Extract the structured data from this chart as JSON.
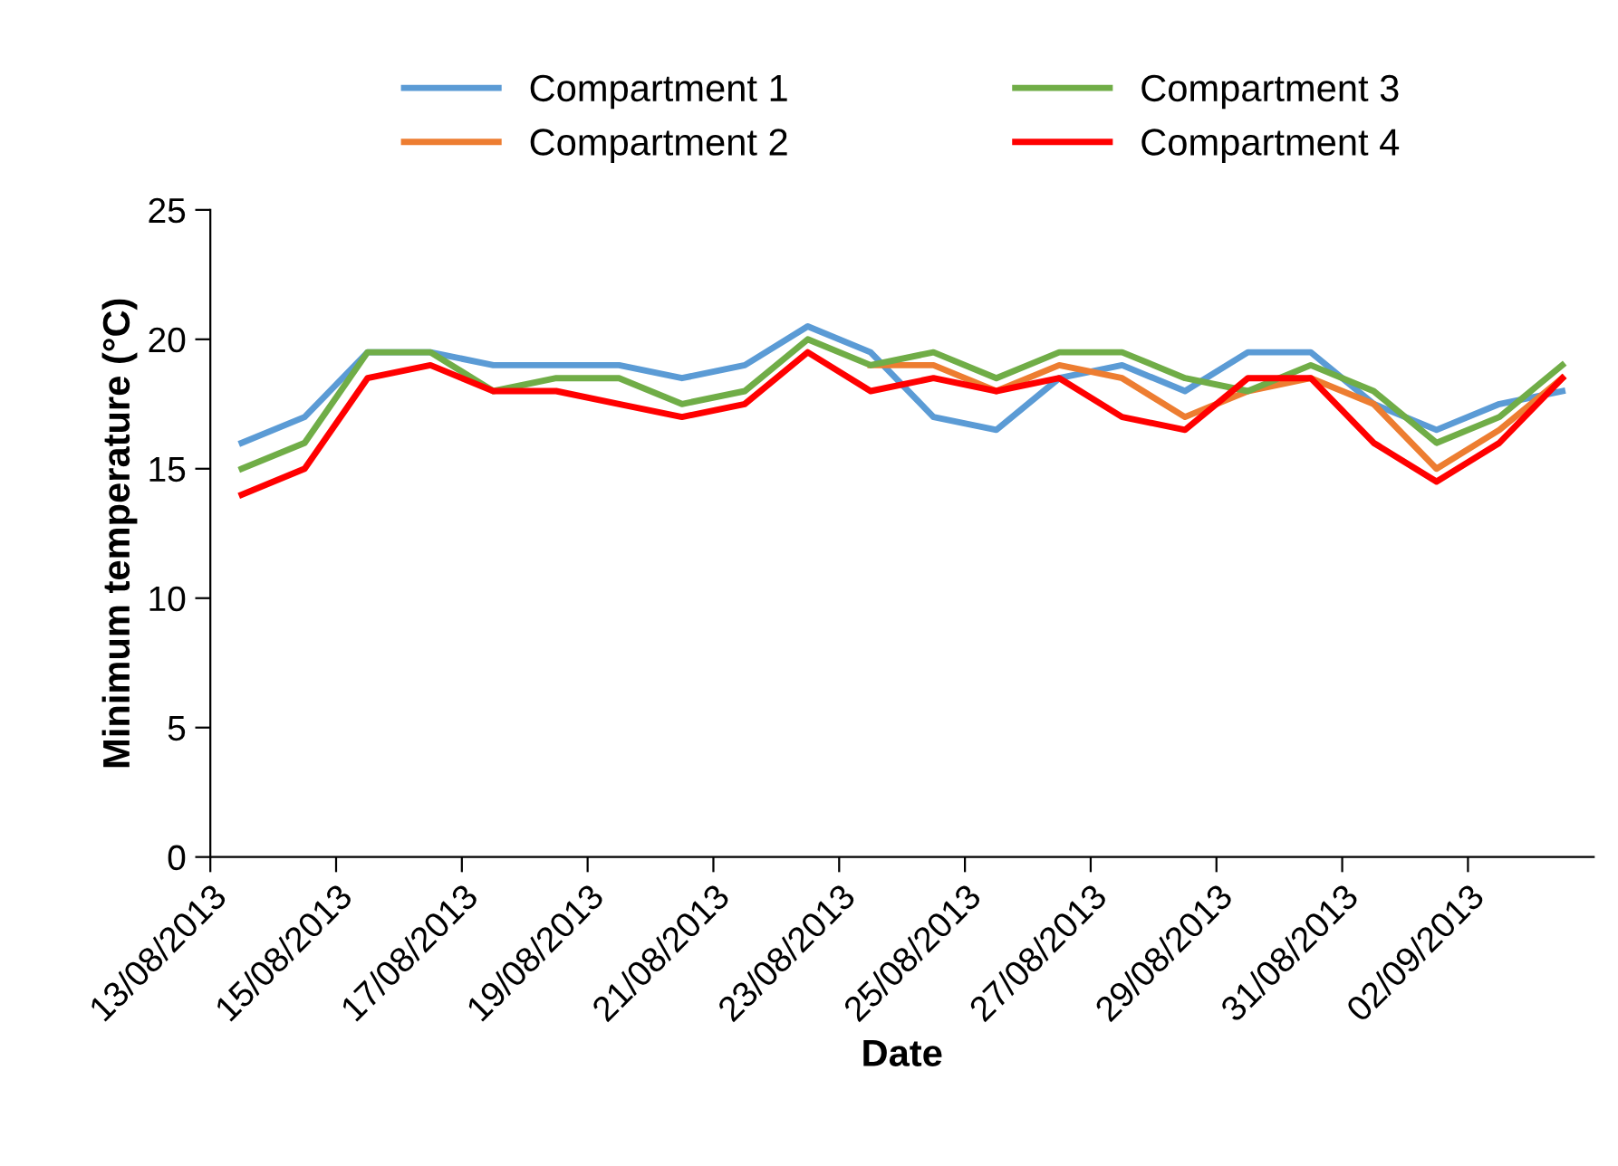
{
  "chart_data": {
    "type": "line",
    "xlabel": "Date",
    "ylabel": "Minimum temperature (°C)",
    "x": [
      "2013-08-13T12:00",
      "2013-08-14T12:00",
      "2013-08-15T12:00",
      "2013-08-16T12:00",
      "2013-08-17T12:00",
      "2013-08-18T12:00",
      "2013-08-19T12:00",
      "2013-08-20T12:00",
      "2013-08-21T12:00",
      "2013-08-22T12:00",
      "2013-08-23T12:00",
      "2013-08-24T12:00",
      "2013-08-25T12:00",
      "2013-08-26T12:00",
      "2013-08-27T12:00",
      "2013-08-28T12:00",
      "2013-08-29T12:00",
      "2013-08-30T12:00",
      "2013-08-31T12:00",
      "2013-09-01T12:00",
      "2013-09-02T12:00",
      "2013-09-03T12:00"
    ],
    "series": [
      {
        "name": "Compartment 1",
        "color": "#5b9bd5",
        "values": [
          16,
          17,
          19.5,
          19.5,
          19,
          19,
          19,
          18.5,
          19,
          20.5,
          19.5,
          17,
          16.5,
          18.5,
          19,
          18,
          19.5,
          19.5,
          17.5,
          16.5,
          17.5,
          18
        ]
      },
      {
        "name": "Compartment 2",
        "color": "#ed7d31",
        "values": [
          null,
          null,
          null,
          null,
          null,
          null,
          null,
          null,
          null,
          null,
          19,
          19,
          18,
          19,
          18.5,
          17,
          18,
          18.5,
          17.5,
          15,
          16.5,
          18.5
        ]
      },
      {
        "name": "Compartment 3",
        "color": "#70ad47",
        "values": [
          15,
          16,
          19.5,
          19.5,
          18,
          18.5,
          18.5,
          17.5,
          18,
          20,
          19,
          19.5,
          18.5,
          19.5,
          19.5,
          18.5,
          18,
          19,
          18,
          16,
          17,
          19
        ]
      },
      {
        "name": "Compartment 4",
        "color": "#ff0000",
        "values": [
          14,
          15,
          18.5,
          19,
          18,
          18,
          17.5,
          17,
          17.5,
          19.5,
          18,
          18.5,
          18,
          18.5,
          17,
          16.5,
          18.5,
          18.5,
          16,
          14.5,
          16,
          18.5
        ]
      }
    ],
    "xlim": [
      "2013-08-13",
      "2013-09-04"
    ],
    "xticks": [
      {
        "value": "2013-08-13",
        "label": "13/08/2013"
      },
      {
        "value": "2013-08-15",
        "label": "15/08/2013"
      },
      {
        "value": "2013-08-17",
        "label": "17/08/2013"
      },
      {
        "value": "2013-08-19",
        "label": "19/08/2013"
      },
      {
        "value": "2013-08-21",
        "label": "21/08/2013"
      },
      {
        "value": "2013-08-23",
        "label": "23/08/2013"
      },
      {
        "value": "2013-08-25",
        "label": "25/08/2013"
      },
      {
        "value": "2013-08-27",
        "label": "27/08/2013"
      },
      {
        "value": "2013-08-29",
        "label": "29/08/2013"
      },
      {
        "value": "2013-08-31",
        "label": "31/08/2013"
      },
      {
        "value": "2013-09-02",
        "label": "02/09/2013"
      }
    ],
    "ylim": [
      0,
      25
    ],
    "yticks": [
      0,
      5,
      10,
      15,
      20,
      25
    ],
    "grid": false,
    "legend": "top",
    "marker": "none",
    "line_style": "solid"
  }
}
